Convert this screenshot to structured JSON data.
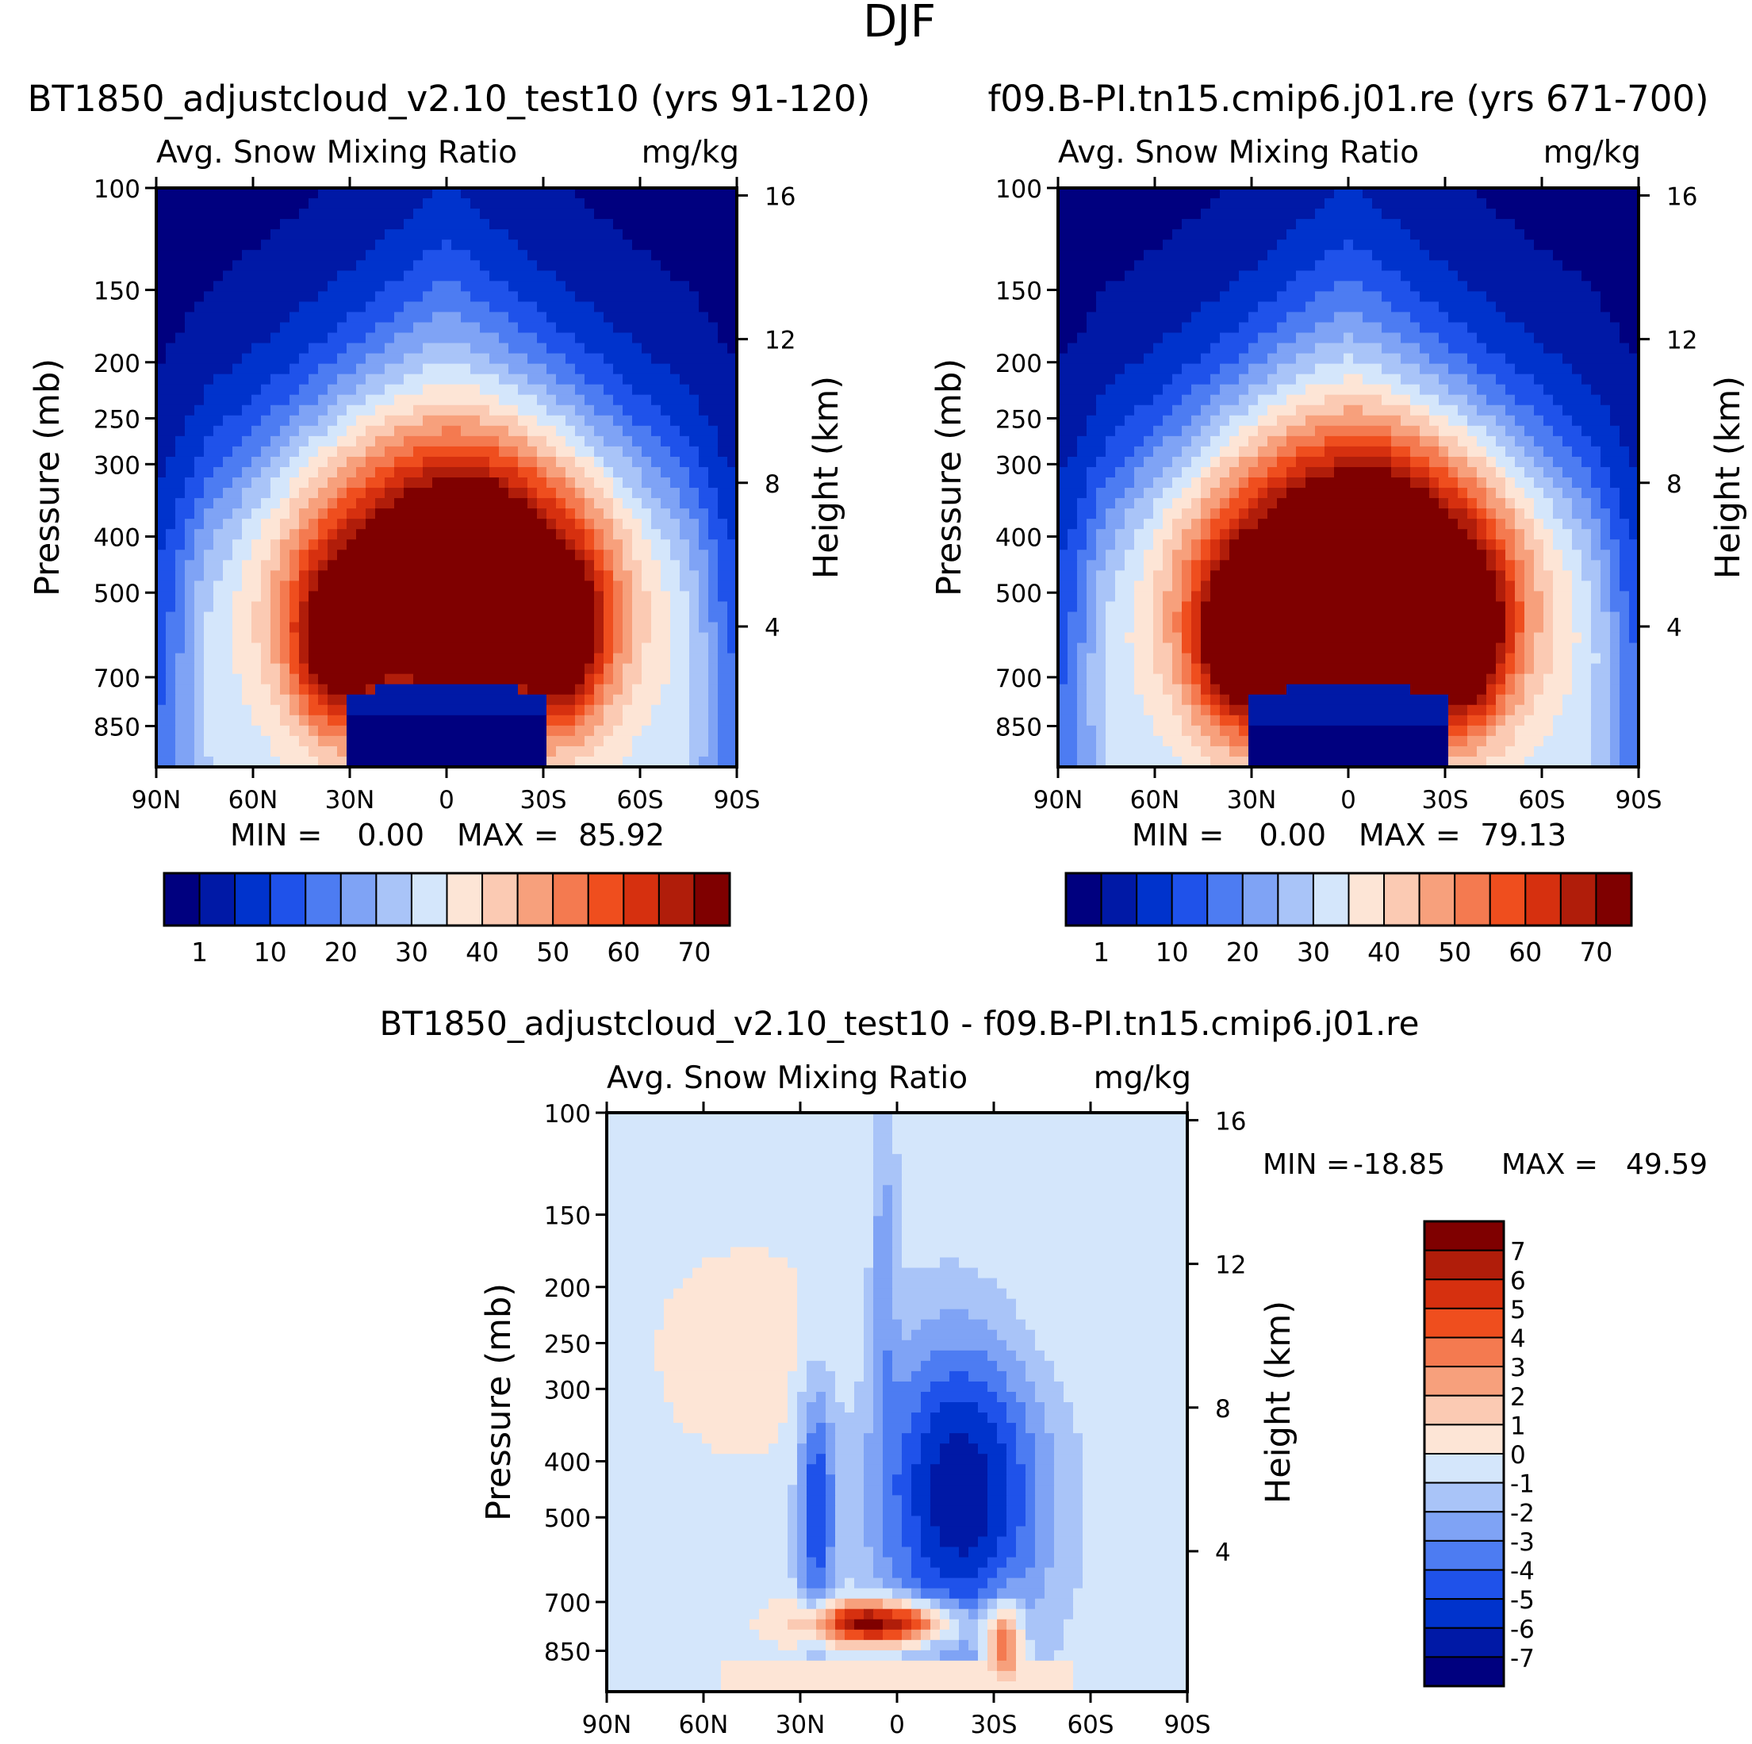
{
  "page_title": "DJF",
  "palettes": {
    "abs": [
      "#00007f",
      "#0019a6",
      "#0033cc",
      "#1f52ea",
      "#4d7cf2",
      "#7fa3f5",
      "#a9c4f8",
      "#d4e6fb",
      "#fde5d6",
      "#fbcab3",
      "#f7a07c",
      "#f47a50",
      "#ef4e1e",
      "#d6300f",
      "#b01d0a",
      "#7f0000"
    ],
    "diff": [
      "#00007f",
      "#0019a6",
      "#0033cc",
      "#1f52ea",
      "#4d7cf2",
      "#7fa3f5",
      "#a9c4f8",
      "#d4e6fb",
      "#fde5d6",
      "#fbcab3",
      "#f7a07c",
      "#f47a50",
      "#ef4e1e",
      "#d6300f",
      "#b01d0a",
      "#7f0000"
    ]
  },
  "chart_data": [
    {
      "type": "contour",
      "id": "panel1",
      "title": "BT1850_adjustcloud_v2.10_test10 (yrs 91-120)",
      "variable": "Avg. Snow Mixing Ratio",
      "units": "mg/kg",
      "ylabel": "Pressure (mb)",
      "y2label": "Height (km)",
      "x_ticks": [
        "90N",
        "60N",
        "30N",
        "0",
        "30S",
        "60S",
        "90S"
      ],
      "y_ticks": [
        100,
        150,
        200,
        250,
        300,
        400,
        500,
        700,
        850
      ],
      "y2_ticks": [
        16,
        12,
        8,
        4
      ],
      "stats": {
        "min_label": "MIN =",
        "min": "0.00",
        "max_label": "MAX =",
        "max": "85.92"
      },
      "colorbar_ticks": [
        "1",
        "10",
        "20",
        "30",
        "40",
        "50",
        "60",
        "70"
      ],
      "colorbar_orientation": "horizontal",
      "field_params": {
        "core_amp": 64,
        "dome_height_mb": 755,
        "dome_halfwidth_deg": 32,
        "upper_amp": 78
      }
    },
    {
      "type": "contour",
      "id": "panel2",
      "title": "f09.B-PI.tn15.cmip6.j01.re (yrs 671-700)",
      "variable": "Avg. Snow Mixing Ratio",
      "units": "mg/kg",
      "ylabel": "Pressure (mb)",
      "y2label": "Height (km)",
      "x_ticks": [
        "90N",
        "60N",
        "30N",
        "0",
        "30S",
        "60S",
        "90S"
      ],
      "y_ticks": [
        100,
        150,
        200,
        250,
        300,
        400,
        500,
        700,
        850
      ],
      "y2_ticks": [
        16,
        12,
        8,
        4
      ],
      "stats": {
        "min_label": "MIN =",
        "min": "0.00",
        "max_label": "MAX =",
        "max": "79.13"
      },
      "colorbar_ticks": [
        "1",
        "10",
        "20",
        "30",
        "40",
        "50",
        "60",
        "70"
      ],
      "colorbar_orientation": "horizontal",
      "field_params": {
        "core_amp": 72,
        "dome_height_mb": 760,
        "dome_halfwidth_deg": 30,
        "upper_amp": 84
      }
    },
    {
      "type": "contour",
      "id": "panel3",
      "title": "BT1850_adjustcloud_v2.10_test10 - f09.B-PI.tn15.cmip6.j01.re",
      "variable": "Avg. Snow Mixing Ratio",
      "units": "mg/kg",
      "ylabel": "Pressure (mb)",
      "y2label": "Height (km)",
      "x_ticks": [
        "90N",
        "60N",
        "30N",
        "0",
        "30S",
        "60S",
        "90S"
      ],
      "y_ticks": [
        100,
        150,
        200,
        250,
        300,
        400,
        500,
        700,
        850
      ],
      "y2_ticks": [
        16,
        12,
        8,
        4
      ],
      "stats": {
        "min_label": "MIN =",
        "min": "-18.85",
        "max_label": "MAX =",
        "max": "49.59"
      },
      "colorbar_ticks": [
        "7",
        "6",
        "5",
        "4",
        "3",
        "2",
        "1",
        "0",
        "-1",
        "-2",
        "-3",
        "-4",
        "-5",
        "-6",
        "-7"
      ],
      "colorbar_orientation": "vertical",
      "pressure_range_mb": [
        100,
        1000
      ]
    }
  ]
}
